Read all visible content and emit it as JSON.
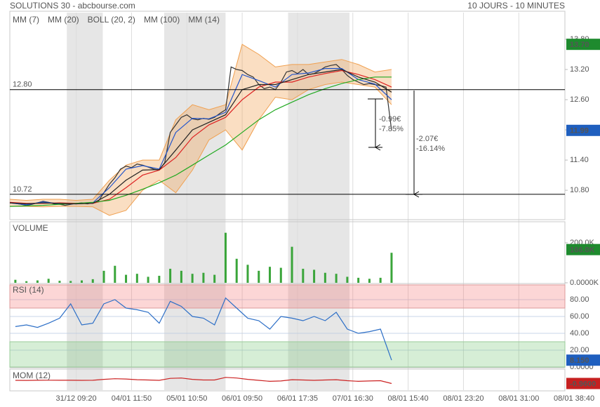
{
  "header": {
    "title": "SOLUTIONS 30 - abcbourse.com",
    "period": "10 JOURS - 10 MINUTES"
  },
  "x_axis": {
    "xlim": [
      0,
      103
    ],
    "xticks": [
      {
        "value": 12,
        "label": "31/12 09:20"
      },
      {
        "value": 22,
        "label": "04/01 11:50"
      },
      {
        "value": 32,
        "label": "05/01 10:50"
      },
      {
        "value": 42,
        "label": "06/01 09:50"
      },
      {
        "value": 52,
        "label": "06/01 17:35"
      },
      {
        "value": 62,
        "label": "07/01 16:30"
      },
      {
        "value": 72,
        "label": "08/01 15:40"
      },
      {
        "value": 82,
        "label": "08/01 23:20"
      },
      {
        "value": 92,
        "label": "08/01 31:00"
      },
      {
        "value": 102,
        "label": "08/01 38:40"
      }
    ],
    "shaded": [
      [
        10.3,
        16.8
      ],
      [
        27.9,
        39
      ],
      [
        50.3,
        61.4
      ]
    ]
  },
  "chart_data": [
    {
      "type": "line",
      "ylim": [
        10.23,
        14.33
      ],
      "yticks": [
        {
          "value": 10.8,
          "label": "10.80"
        },
        {
          "value": 11.4,
          "label": "11.40"
        },
        {
          "value": 12,
          "label": "12.00"
        },
        {
          "value": 12.6,
          "label": "12.60"
        },
        {
          "value": 13.2,
          "label": "13.20"
        },
        {
          "value": 13.8,
          "label": "13.80"
        }
      ],
      "close": {
        "color": "#333333",
        "x": [
          0,
          1,
          2,
          3,
          4,
          5,
          6,
          7,
          8,
          9,
          10,
          11,
          12,
          13,
          14,
          15,
          16,
          17,
          18,
          19,
          20,
          21,
          22,
          23,
          24,
          25,
          26,
          27,
          28,
          29,
          30,
          31,
          32,
          33,
          34,
          35,
          36,
          37,
          38,
          39,
          40,
          41,
          42,
          43,
          44,
          45,
          46,
          47,
          48,
          49,
          50,
          51,
          52,
          53,
          54,
          55,
          56,
          57,
          58,
          59,
          60,
          61,
          62,
          63,
          64,
          65,
          66,
          67,
          68,
          69
        ],
        "values": [
          10.55,
          10.54,
          10.52,
          10.5,
          10.52,
          10.55,
          10.58,
          10.56,
          10.53,
          10.52,
          10.5,
          10.52,
          10.54,
          10.55,
          10.53,
          10.55,
          10.58,
          10.75,
          10.92,
          11.05,
          11.22,
          11.28,
          11.25,
          11.32,
          11.3,
          11.26,
          11.22,
          11.2,
          11.35,
          11.95,
          12.1,
          12.25,
          12.3,
          12.22,
          12.2,
          12.23,
          12.21,
          12.25,
          12.33,
          12.4,
          13.25,
          13.2,
          13.18,
          13.1,
          13.05,
          12.9,
          12.82,
          12.85,
          12.8,
          12.95,
          13.15,
          13.18,
          13.12,
          13.2,
          13.1,
          13.12,
          13.18,
          13.25,
          13.28,
          13.3,
          13.2,
          13.08,
          13.0,
          12.95,
          12.9,
          12.92,
          12.9,
          12.88,
          12.85,
          11.99
        ]
      },
      "series": [
        {
          "name": "MM (7)",
          "color": "#2255cc",
          "x": [
            0,
            3,
            6,
            9,
            12,
            15,
            18,
            21,
            24,
            27,
            30,
            33,
            36,
            39,
            42,
            45,
            48,
            51,
            54,
            57,
            60,
            63,
            66,
            69
          ],
          "values": [
            10.55,
            10.51,
            10.57,
            10.53,
            10.53,
            10.55,
            10.85,
            11.22,
            11.29,
            11.22,
            11.95,
            12.23,
            12.22,
            12.35,
            13.1,
            12.98,
            12.85,
            13.1,
            13.13,
            13.22,
            13.22,
            13.0,
            12.91,
            12.6
          ]
        },
        {
          "name": "MM (20)",
          "color": "#dd2222",
          "x": [
            0,
            3,
            6,
            9,
            12,
            15,
            18,
            21,
            24,
            27,
            30,
            33,
            36,
            39,
            42,
            45,
            48,
            51,
            54,
            57,
            60,
            63,
            66,
            69
          ],
          "values": [
            10.56,
            10.54,
            10.54,
            10.55,
            10.54,
            10.54,
            10.62,
            10.85,
            11.1,
            11.2,
            11.45,
            11.85,
            12.1,
            12.25,
            12.6,
            12.85,
            12.95,
            12.95,
            13.05,
            13.12,
            13.18,
            13.1,
            13.0,
            12.85
          ]
        },
        {
          "name": "BOLL (20, 2)",
          "color": "#f0a050",
          "x": [
            0,
            3,
            6,
            9,
            12,
            15,
            18,
            21,
            24,
            27,
            30,
            33,
            36,
            39,
            42,
            45,
            48,
            51,
            54,
            57,
            60,
            63,
            66,
            69
          ],
          "upper": [
            10.62,
            10.6,
            10.62,
            10.62,
            10.6,
            10.62,
            11.0,
            11.3,
            11.4,
            11.4,
            12.2,
            12.5,
            12.4,
            12.5,
            13.7,
            13.5,
            13.25,
            13.3,
            13.3,
            13.35,
            13.4,
            13.3,
            13.15,
            13.2
          ],
          "lower": [
            10.48,
            10.48,
            10.47,
            10.48,
            10.48,
            10.47,
            10.3,
            10.4,
            10.8,
            11.0,
            10.75,
            11.2,
            11.8,
            12.0,
            11.6,
            12.2,
            12.65,
            12.6,
            12.8,
            12.9,
            12.95,
            12.9,
            12.85,
            12.5
          ]
        },
        {
          "name": "MM (100)",
          "color": "#22aa22",
          "x": [
            0,
            3,
            6,
            9,
            12,
            15,
            18,
            21,
            24,
            27,
            30,
            33,
            36,
            39,
            42,
            45,
            48,
            51,
            54,
            57,
            60,
            63,
            66,
            69
          ],
          "values": [
            10.48,
            10.49,
            10.5,
            10.52,
            10.54,
            10.56,
            10.6,
            10.7,
            10.82,
            10.95,
            11.1,
            11.3,
            11.5,
            11.7,
            11.95,
            12.2,
            12.4,
            12.55,
            12.7,
            12.82,
            12.92,
            13.0,
            13.05,
            13.05
          ]
        },
        {
          "name": "MM (14)",
          "color": "#222222",
          "x": [
            0,
            3,
            6,
            9,
            12,
            15,
            18,
            21,
            24,
            27,
            30,
            33,
            36,
            39,
            42,
            45,
            48,
            51,
            54,
            57,
            60,
            63,
            66,
            69
          ],
          "values": [
            10.55,
            10.53,
            10.55,
            10.54,
            10.53,
            10.54,
            10.72,
            11.0,
            11.2,
            11.21,
            11.6,
            12.0,
            12.15,
            12.3,
            12.8,
            12.9,
            12.9,
            13.0,
            13.1,
            13.15,
            13.2,
            13.05,
            12.95,
            12.75
          ]
        }
      ],
      "levels": [
        {
          "value": 12.8,
          "label": "12.80"
        },
        {
          "value": 10.72,
          "label": "10.72"
        }
      ],
      "annotations": [
        "-0.99€",
        "-7.85%",
        "-2.07€",
        "-16.14%"
      ],
      "badges": [
        {
          "value": 13.7,
          "label": "13.70",
          "color": "#1e8a2e"
        },
        {
          "value": 11.99,
          "color": "#1f5fbf"
        }
      ]
    },
    {
      "type": "bar",
      "label": "VOLUME",
      "color": "#3aa53a",
      "ylim": [
        0,
        298000
      ],
      "yticks": [
        {
          "value": 0,
          "label": "0.0000K"
        },
        {
          "value": 200000,
          "label": "200.0K"
        }
      ],
      "x": [
        1,
        3,
        5,
        7,
        9,
        11,
        13,
        15,
        17,
        19,
        21,
        23,
        25,
        27,
        29,
        31,
        33,
        35,
        37,
        39,
        41,
        43,
        45,
        47,
        49,
        51,
        53,
        55,
        57,
        59,
        61,
        63,
        65,
        67,
        69
      ],
      "values": [
        15000,
        8000,
        12000,
        20000,
        10000,
        9000,
        12000,
        18000,
        60000,
        85000,
        40000,
        45000,
        30000,
        35000,
        70000,
        60000,
        45000,
        50000,
        40000,
        250000,
        120000,
        90000,
        60000,
        80000,
        75000,
        180000,
        70000,
        65000,
        50000,
        45000,
        30000,
        25000,
        20000,
        25000,
        150000
      ],
      "badges": [
        {
          "value": 166000,
          "label": "166.0K",
          "color": "#1e8a2e"
        }
      ]
    },
    {
      "type": "line",
      "label": "RSI (14)",
      "color": "#2d6fc7",
      "ylim": [
        0,
        97.5
      ],
      "yticks": [
        {
          "value": 0,
          "label": "0.0000"
        },
        {
          "value": 20,
          "label": "20.00"
        },
        {
          "value": 40,
          "label": "40.00"
        },
        {
          "value": 60,
          "label": "60.00"
        },
        {
          "value": 80,
          "label": "80.00"
        }
      ],
      "grid": true,
      "overbought": 70,
      "oversold": 30,
      "x": [
        1,
        3,
        5,
        7,
        9,
        11,
        13,
        15,
        17,
        19,
        21,
        23,
        25,
        27,
        29,
        31,
        33,
        35,
        37,
        39,
        41,
        43,
        45,
        47,
        49,
        51,
        53,
        55,
        57,
        59,
        61,
        63,
        65,
        67,
        69
      ],
      "values": [
        48,
        50,
        47,
        52,
        58,
        75,
        50,
        52,
        75,
        80,
        70,
        68,
        65,
        52,
        78,
        72,
        60,
        58,
        50,
        82,
        70,
        58,
        55,
        45,
        60,
        58,
        55,
        60,
        55,
        65,
        45,
        40,
        42,
        45,
        8.15
      ],
      "badges": [
        {
          "value": 8.15,
          "label": "8.150",
          "color": "#1f5fbf"
        }
      ]
    },
    {
      "type": "line",
      "label": "MOM (12)",
      "color": "#cc2222",
      "ylim": [
        -3,
        3
      ],
      "x": [
        1,
        3,
        5,
        7,
        9,
        11,
        13,
        15,
        17,
        19,
        21,
        23,
        25,
        27,
        29,
        31,
        33,
        35,
        37,
        39,
        41,
        43,
        45,
        47,
        49,
        51,
        53,
        55,
        57,
        59,
        61,
        63,
        65,
        67,
        69
      ],
      "values": [
        0,
        -0.02,
        0.02,
        0.05,
        0.03,
        0.02,
        0,
        0.02,
        0.3,
        0.5,
        0.4,
        0.2,
        0.1,
        0,
        0.6,
        0.7,
        0.3,
        0.1,
        0.1,
        0.9,
        0.7,
        0.3,
        0,
        -0.3,
        -0.2,
        0.2,
        0.1,
        0,
        0.1,
        0.2,
        -0.1,
        -0.3,
        -0.2,
        -0.1,
        -0.96
      ],
      "badges": [
        {
          "value": -0.96,
          "label": "-0.9600",
          "color": "#c62020"
        }
      ]
    }
  ]
}
